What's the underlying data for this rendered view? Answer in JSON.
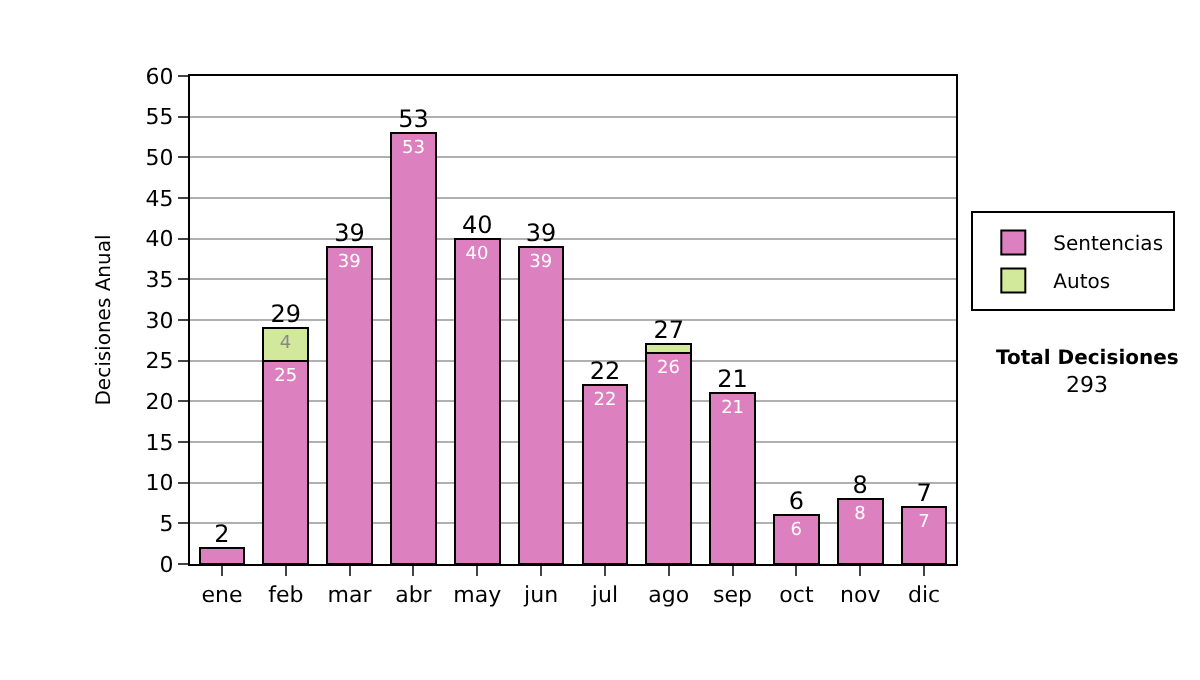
{
  "chart_data": {
    "type": "bar",
    "stacked": true,
    "ylabel": "Decisiones Anual",
    "categories": [
      "ene",
      "feb",
      "mar",
      "abr",
      "may",
      "jun",
      "jul",
      "ago",
      "sep",
      "oct",
      "nov",
      "dic"
    ],
    "series": [
      {
        "name": "Sentencias",
        "color": "#dd80c0",
        "values": [
          2,
          25,
          39,
          53,
          40,
          39,
          22,
          26,
          21,
          6,
          8,
          7
        ],
        "value_labels": [
          null,
          "25",
          "39",
          "53",
          "40",
          "39",
          "22",
          "26",
          "21",
          "6",
          "8",
          "7"
        ]
      },
      {
        "name": "Autos",
        "color": "#d2e89a",
        "values": [
          null,
          4,
          null,
          null,
          null,
          null,
          null,
          1,
          null,
          null,
          null,
          null
        ],
        "value_labels": [
          null,
          "4",
          null,
          null,
          null,
          null,
          null,
          null,
          null,
          null,
          null,
          null
        ]
      }
    ],
    "totals": [
      "2",
      "29",
      "39",
      "53",
      "40",
      "39",
      "22",
      "27",
      "21",
      "6",
      "8",
      "7"
    ],
    "ylim": [
      0,
      60
    ],
    "yticks": [
      0,
      5,
      10,
      15,
      20,
      25,
      30,
      35,
      40,
      45,
      50,
      55,
      60
    ],
    "grid": "y",
    "legend": "right",
    "annotations": [
      "Total Decisiones",
      "293"
    ]
  }
}
